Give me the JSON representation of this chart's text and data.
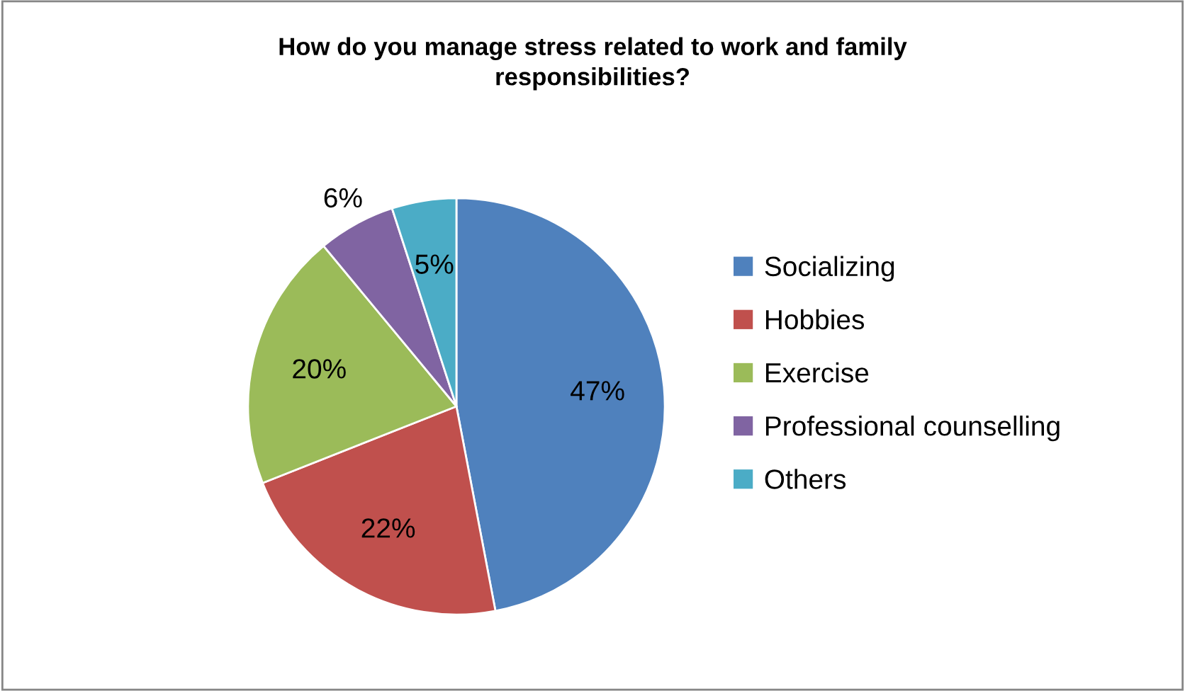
{
  "chart_data": {
    "type": "pie",
    "title": "How do you manage stress related to work and family responsibilities?",
    "categories": [
      "Socializing",
      "Hobbies",
      "Exercise",
      "Professional counselling",
      "Others"
    ],
    "values": [
      47,
      22,
      20,
      6,
      5
    ],
    "colors": [
      "#4f81bd",
      "#c0504d",
      "#9bbb59",
      "#8064a2",
      "#4bacc6"
    ],
    "value_labels": [
      "47%",
      "22%",
      "20%",
      "6%",
      "5%"
    ],
    "legend": "right"
  }
}
